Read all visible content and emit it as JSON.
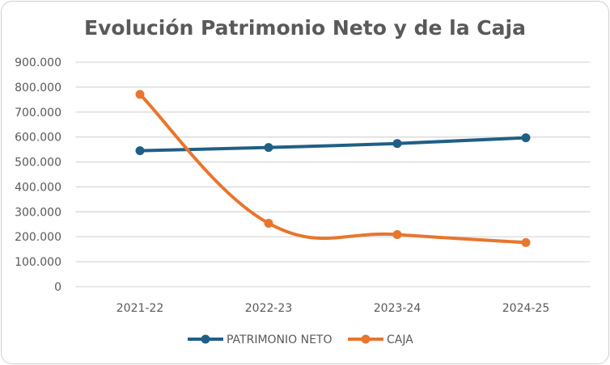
{
  "chart_data": {
    "type": "line",
    "title": "Evolución Patrimonio Neto y de la Caja",
    "xlabel": "",
    "ylabel": "",
    "categories": [
      "2021-22",
      "2022-23",
      "2023-24",
      "2024-25"
    ],
    "ylim": [
      0,
      900000
    ],
    "yticks": [
      0,
      100000,
      200000,
      300000,
      400000,
      500000,
      600000,
      700000,
      800000,
      900000
    ],
    "ytick_labels": [
      "0",
      "100.000",
      "200.000",
      "300.000",
      "400.000",
      "500.000",
      "600.000",
      "700.000",
      "800.000",
      "900.000"
    ],
    "grid": "horizontal",
    "smooth": true,
    "legend_position": "bottom",
    "series": [
      {
        "name": "PATRIMONIO NETO",
        "color": "#1f5f86",
        "values": [
          545000,
          558000,
          574000,
          597000
        ]
      },
      {
        "name": "CAJA",
        "color": "#e8762d",
        "values": [
          771000,
          254000,
          209000,
          177000
        ]
      }
    ]
  }
}
